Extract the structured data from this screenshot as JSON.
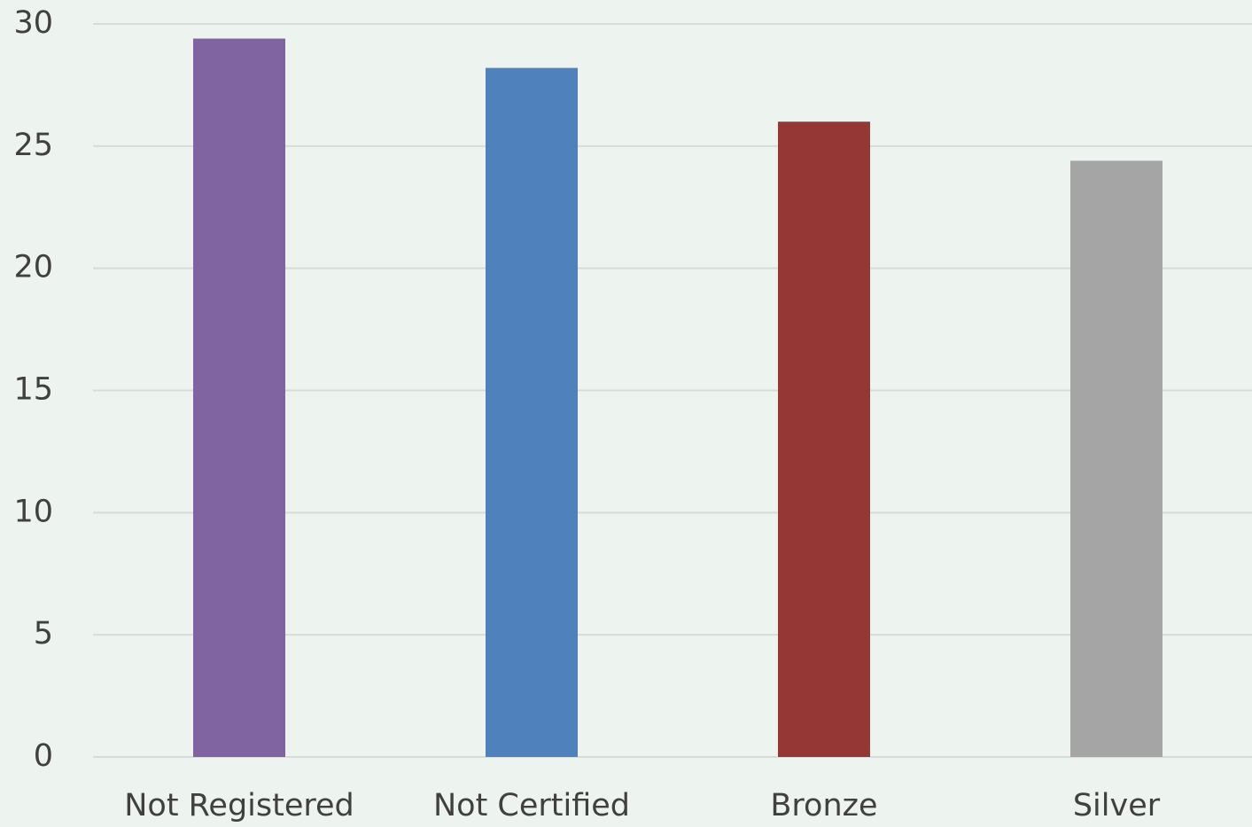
{
  "chart_data": {
    "type": "bar",
    "categories": [
      "Not Registered",
      "Not Certified",
      "Bronze",
      "Silver"
    ],
    "values": [
      29.4,
      28.2,
      26.0,
      24.4
    ],
    "colors": [
      "#8064a2",
      "#4f81bd",
      "#953735",
      "#a5a5a5"
    ],
    "ylim": [
      0,
      30
    ],
    "yticks": [
      0,
      5,
      10,
      15,
      20,
      25,
      30
    ],
    "grid": true
  }
}
